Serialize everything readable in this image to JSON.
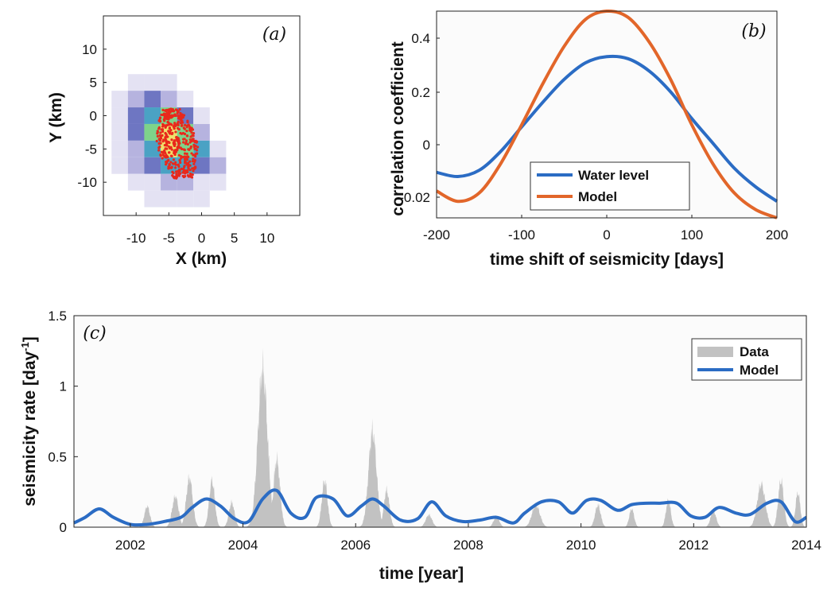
{
  "chart_data": [
    {
      "panel_label": "(a)",
      "type": "heatmap",
      "xlabel": "X (km)",
      "ylabel": "Y (km)",
      "xlim": [
        -15,
        15
      ],
      "ylim": [
        -15,
        15
      ],
      "xticks": [
        -10,
        -5,
        0,
        5,
        10
      ],
      "yticks": [
        10,
        5,
        0,
        -5,
        -10
      ],
      "cell_size_km": 2.5,
      "cells": [
        {
          "x": -10,
          "y": 5,
          "level": 1
        },
        {
          "x": -7.5,
          "y": 5,
          "level": 1
        },
        {
          "x": -5,
          "y": 5,
          "level": 1
        },
        {
          "x": -12.5,
          "y": 2.5,
          "level": 1
        },
        {
          "x": -10,
          "y": 2.5,
          "level": 2
        },
        {
          "x": -7.5,
          "y": 2.5,
          "level": 3
        },
        {
          "x": -5,
          "y": 2.5,
          "level": 2
        },
        {
          "x": -2.5,
          "y": 2.5,
          "level": 1
        },
        {
          "x": -12.5,
          "y": 0,
          "level": 1
        },
        {
          "x": -10,
          "y": 0,
          "level": 3
        },
        {
          "x": -7.5,
          "y": 0,
          "level": 4
        },
        {
          "x": -5,
          "y": 0,
          "level": 5
        },
        {
          "x": -2.5,
          "y": 0,
          "level": 3
        },
        {
          "x": 0,
          "y": 0,
          "level": 1
        },
        {
          "x": -12.5,
          "y": -2.5,
          "level": 1
        },
        {
          "x": -10,
          "y": -2.5,
          "level": 3
        },
        {
          "x": -7.5,
          "y": -2.5,
          "level": 5
        },
        {
          "x": -5,
          "y": -2.5,
          "level": 6
        },
        {
          "x": -2.5,
          "y": -2.5,
          "level": 5
        },
        {
          "x": 0,
          "y": -2.5,
          "level": 2
        },
        {
          "x": -12.5,
          "y": -5,
          "level": 1
        },
        {
          "x": -10,
          "y": -5,
          "level": 2
        },
        {
          "x": -7.5,
          "y": -5,
          "level": 4
        },
        {
          "x": -5,
          "y": -5,
          "level": 6
        },
        {
          "x": -2.5,
          "y": -5,
          "level": 5
        },
        {
          "x": 0,
          "y": -5,
          "level": 4
        },
        {
          "x": 2.5,
          "y": -5,
          "level": 1
        },
        {
          "x": -12.5,
          "y": -7.5,
          "level": 1
        },
        {
          "x": -10,
          "y": -7.5,
          "level": 2
        },
        {
          "x": -7.5,
          "y": -7.5,
          "level": 3
        },
        {
          "x": -5,
          "y": -7.5,
          "level": 4
        },
        {
          "x": -2.5,
          "y": -7.5,
          "level": 4
        },
        {
          "x": 0,
          "y": -7.5,
          "level": 3
        },
        {
          "x": 2.5,
          "y": -7.5,
          "level": 2
        },
        {
          "x": -10,
          "y": -10,
          "level": 1
        },
        {
          "x": -7.5,
          "y": -10,
          "level": 1
        },
        {
          "x": -5,
          "y": -10,
          "level": 2
        },
        {
          "x": -2.5,
          "y": -10,
          "level": 2
        },
        {
          "x": 0,
          "y": -10,
          "level": 1
        },
        {
          "x": 2.5,
          "y": -10,
          "level": 1
        },
        {
          "x": -7.5,
          "y": -12.5,
          "level": 1
        },
        {
          "x": -5,
          "y": -12.5,
          "level": 1
        },
        {
          "x": -2.5,
          "y": -12.5,
          "level": 1
        },
        {
          "x": 0,
          "y": -12.5,
          "level": 1
        }
      ],
      "level_colors": [
        "#e4e2f3",
        "#b6b3df",
        "#6e76c2",
        "#4aa2c4",
        "#7ed38a",
        "#f0e06c"
      ],
      "events_color": "#e8281c",
      "events_region": {
        "x_range": [
          -7,
          0.5
        ],
        "y_range": [
          -9.5,
          1
        ]
      }
    },
    {
      "panel_label": "(b)",
      "type": "line",
      "xlabel": "time shift of seismicity [days]",
      "ylabel": "correlation coefficient",
      "xlim": [
        -200,
        200
      ],
      "xticks": [
        -200,
        -100,
        0,
        100,
        200
      ],
      "ytick_labels": [
        "0.4",
        "0.2",
        "0",
        "-0.02"
      ],
      "legend_placement": "bottom-left",
      "series": [
        {
          "name": "Water level",
          "color": "#2b6cc4",
          "x": [
            -200,
            -175,
            -150,
            -125,
            -100,
            -75,
            -50,
            -25,
            0,
            25,
            50,
            75,
            100,
            125,
            150,
            175,
            200
          ],
          "y_fraction": [
            0.22,
            0.2,
            0.23,
            0.32,
            0.44,
            0.56,
            0.67,
            0.75,
            0.78,
            0.77,
            0.71,
            0.61,
            0.48,
            0.36,
            0.24,
            0.15,
            0.08
          ]
        },
        {
          "name": "Model",
          "color": "#e2662a",
          "x": [
            -200,
            -175,
            -150,
            -125,
            -100,
            -75,
            -50,
            -25,
            0,
            25,
            50,
            75,
            100,
            125,
            150,
            175,
            200
          ],
          "y_fraction": [
            0.13,
            0.08,
            0.12,
            0.26,
            0.45,
            0.65,
            0.83,
            0.96,
            1.0,
            0.97,
            0.85,
            0.67,
            0.45,
            0.26,
            0.12,
            0.04,
            0.0
          ]
        }
      ]
    },
    {
      "panel_label": "(c)",
      "type": "area",
      "xlabel": "time [year]",
      "ylabel": "seismicity rate [day",
      "ylabel_sup": "-1",
      "ylabel_end": "]",
      "xlim": [
        2001,
        2014
      ],
      "ylim": [
        0,
        1.5
      ],
      "xticks": [
        2002,
        2004,
        2006,
        2008,
        2010,
        2012,
        2014
      ],
      "yticks": [
        0,
        0.5,
        1,
        1.5
      ],
      "yticklabels": [
        "0",
        "0.5",
        "1",
        "1.5"
      ],
      "legend_placement": "top-right",
      "series": [
        {
          "name": "Data",
          "color": "#c2c2c2",
          "kind": "area",
          "peaks": [
            {
              "t": 2002.3,
              "h": 0.17,
              "w": 0.07
            },
            {
              "t": 2002.8,
              "h": 0.25,
              "w": 0.08
            },
            {
              "t": 2003.05,
              "h": 0.4,
              "w": 0.08
            },
            {
              "t": 2003.45,
              "h": 0.38,
              "w": 0.07
            },
            {
              "t": 2003.8,
              "h": 0.2,
              "w": 0.07
            },
            {
              "t": 2004.35,
              "h": 1.28,
              "w": 0.12
            },
            {
              "t": 2004.6,
              "h": 0.55,
              "w": 0.08
            },
            {
              "t": 2005.45,
              "h": 0.38,
              "w": 0.07
            },
            {
              "t": 2006.3,
              "h": 0.78,
              "w": 0.1
            },
            {
              "t": 2006.55,
              "h": 0.3,
              "w": 0.07
            },
            {
              "t": 2007.3,
              "h": 0.1,
              "w": 0.08
            },
            {
              "t": 2008.5,
              "h": 0.09,
              "w": 0.07
            },
            {
              "t": 2009.2,
              "h": 0.18,
              "w": 0.1
            },
            {
              "t": 2010.3,
              "h": 0.18,
              "w": 0.07
            },
            {
              "t": 2010.9,
              "h": 0.15,
              "w": 0.06
            },
            {
              "t": 2011.55,
              "h": 0.22,
              "w": 0.06
            },
            {
              "t": 2012.35,
              "h": 0.13,
              "w": 0.07
            },
            {
              "t": 2013.2,
              "h": 0.35,
              "w": 0.1
            },
            {
              "t": 2013.55,
              "h": 0.38,
              "w": 0.07
            },
            {
              "t": 2013.85,
              "h": 0.28,
              "w": 0.06
            }
          ]
        },
        {
          "name": "Model",
          "color": "#2b6cc4",
          "kind": "line",
          "x": [
            2001.0,
            2001.2,
            2001.45,
            2001.7,
            2002.0,
            2002.3,
            2002.6,
            2002.9,
            2003.1,
            2003.35,
            2003.6,
            2003.85,
            2004.1,
            2004.35,
            2004.6,
            2004.85,
            2005.1,
            2005.3,
            2005.6,
            2005.85,
            2006.1,
            2006.3,
            2006.5,
            2006.8,
            2007.1,
            2007.35,
            2007.6,
            2007.9,
            2008.2,
            2008.5,
            2008.8,
            2009.0,
            2009.3,
            2009.6,
            2009.85,
            2010.1,
            2010.35,
            2010.65,
            2010.9,
            2011.15,
            2011.4,
            2011.7,
            2011.95,
            2012.2,
            2012.45,
            2012.75,
            2013.0,
            2013.3,
            2013.55,
            2013.8,
            2014.0
          ],
          "y": [
            0.03,
            0.07,
            0.13,
            0.07,
            0.02,
            0.02,
            0.04,
            0.07,
            0.14,
            0.2,
            0.15,
            0.06,
            0.04,
            0.2,
            0.26,
            0.1,
            0.07,
            0.21,
            0.2,
            0.08,
            0.15,
            0.2,
            0.15,
            0.05,
            0.06,
            0.18,
            0.08,
            0.04,
            0.05,
            0.07,
            0.03,
            0.1,
            0.18,
            0.18,
            0.1,
            0.19,
            0.19,
            0.12,
            0.16,
            0.17,
            0.17,
            0.17,
            0.08,
            0.07,
            0.14,
            0.1,
            0.09,
            0.17,
            0.18,
            0.04,
            0.07
          ]
        }
      ]
    }
  ],
  "labels": {
    "a": {
      "tag": "(a)",
      "xlabel": "X (km)",
      "ylabel": "Y (km)"
    },
    "b": {
      "tag": "(b)",
      "xlabel": "time shift of seismicity [days]",
      "ylabel": "correlation coefficient",
      "legend": [
        "Water level",
        "Model"
      ]
    },
    "c": {
      "tag": "(c)",
      "xlabel": "time [year]",
      "legend": [
        "Data",
        "Model"
      ]
    }
  }
}
